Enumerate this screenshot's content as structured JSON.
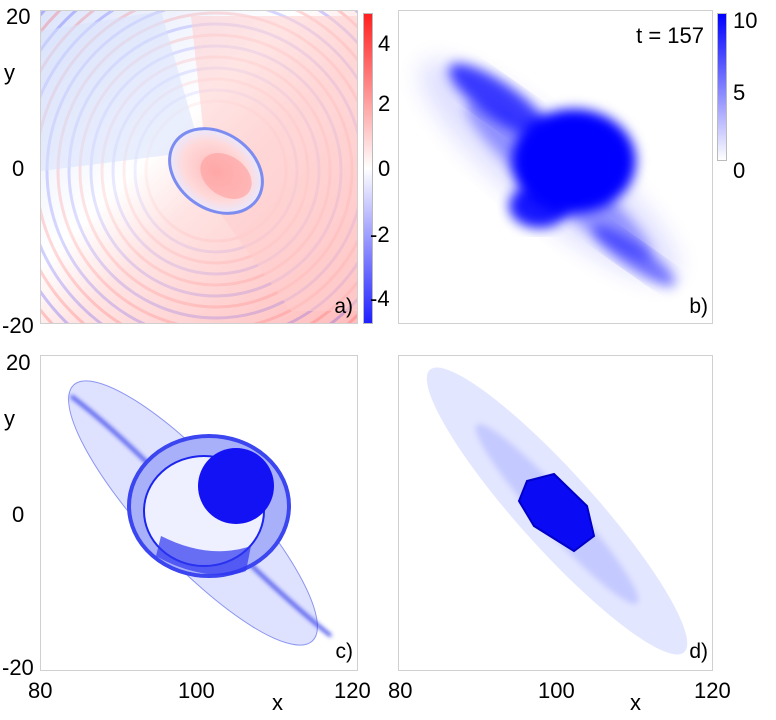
{
  "figure": {
    "time_label": "t = 157",
    "x_axis_label": "x",
    "y_axis_label": "y"
  },
  "colors": {
    "blue": "#0000ff",
    "red": "#ff2020",
    "white": "#ffffff"
  },
  "chart_data": [
    {
      "type": "heatmap",
      "panel_label": "a)",
      "quantity": "signed field (diverging colormap)",
      "xlim": [
        80,
        120
      ],
      "ylim": [
        -20,
        20
      ],
      "y_ticks": [
        "20",
        "0",
        "-20"
      ],
      "colorbar": {
        "ticks": [
          "4",
          "2",
          "0",
          "-2",
          "-4"
        ],
        "range": [
          -5,
          5
        ]
      }
    },
    {
      "type": "heatmap",
      "panel_label": "b)",
      "quantity": "density",
      "xlim": [
        80,
        120
      ],
      "ylim": [
        -20,
        20
      ],
      "annotation": "t = 157",
      "colorbar": {
        "ticks": [
          "10",
          "5",
          "0"
        ],
        "range": [
          0,
          10
        ]
      }
    },
    {
      "type": "heatmap",
      "panel_label": "c)",
      "quantity": "density",
      "xlim": [
        80,
        120
      ],
      "ylim": [
        -20,
        20
      ],
      "x_ticks": [
        "80",
        "100",
        "120"
      ],
      "y_ticks": [
        "20",
        "0",
        "-20"
      ]
    },
    {
      "type": "heatmap",
      "panel_label": "d)",
      "quantity": "density",
      "xlim": [
        80,
        120
      ],
      "ylim": [
        -20,
        20
      ],
      "x_ticks": [
        "80",
        "100",
        "120"
      ]
    }
  ]
}
